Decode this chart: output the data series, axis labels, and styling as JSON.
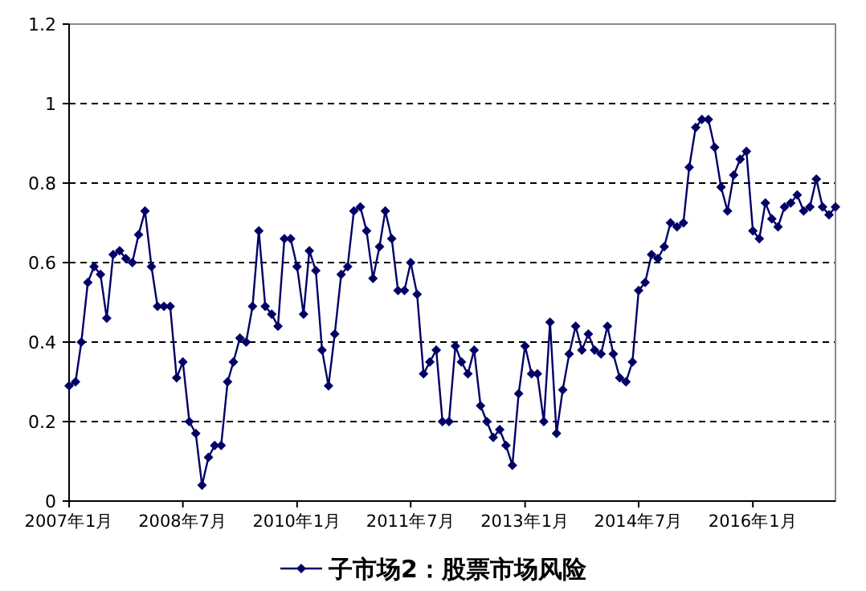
{
  "chart_data": {
    "type": "line",
    "x": [
      "2007-01",
      "2007-02",
      "2007-03",
      "2007-04",
      "2007-05",
      "2007-06",
      "2007-07",
      "2007-08",
      "2007-09",
      "2007-10",
      "2007-11",
      "2007-12",
      "2008-01",
      "2008-02",
      "2008-03",
      "2008-04",
      "2008-05",
      "2008-06",
      "2008-07",
      "2008-08",
      "2008-09",
      "2008-10",
      "2008-11",
      "2008-12",
      "2009-01",
      "2009-02",
      "2009-03",
      "2009-04",
      "2009-05",
      "2009-06",
      "2009-07",
      "2009-08",
      "2009-09",
      "2009-10",
      "2009-11",
      "2009-12",
      "2010-01",
      "2010-02",
      "2010-03",
      "2010-04",
      "2010-05",
      "2010-06",
      "2010-07",
      "2010-08",
      "2010-09",
      "2010-10",
      "2010-11",
      "2010-12",
      "2011-01",
      "2011-02",
      "2011-03",
      "2011-04",
      "2011-05",
      "2011-06",
      "2011-07",
      "2011-08",
      "2011-09",
      "2011-10",
      "2011-11",
      "2011-12",
      "2012-01",
      "2012-02",
      "2012-03",
      "2012-04",
      "2012-05",
      "2012-06",
      "2012-07",
      "2012-08",
      "2012-09",
      "2012-10",
      "2012-11",
      "2012-12",
      "2013-01",
      "2013-02",
      "2013-03",
      "2013-04",
      "2013-05",
      "2013-06",
      "2013-07",
      "2013-08",
      "2013-09",
      "2013-10",
      "2013-11",
      "2013-12",
      "2014-01",
      "2014-02",
      "2014-03",
      "2014-04",
      "2014-05",
      "2014-06",
      "2014-07",
      "2014-08",
      "2014-09",
      "2014-10",
      "2014-11",
      "2014-12",
      "2015-01",
      "2015-02",
      "2015-03",
      "2015-04",
      "2015-05",
      "2015-06",
      "2015-07",
      "2015-08",
      "2015-09",
      "2015-10",
      "2015-11",
      "2015-12",
      "2016-01",
      "2016-02",
      "2016-03",
      "2016-04",
      "2016-05",
      "2016-06",
      "2016-07",
      "2016-08",
      "2016-09",
      "2016-10",
      "2016-11",
      "2016-12",
      "2017-01",
      "2017-02"
    ],
    "series": [
      {
        "name": "子市场2：股票市场风险",
        "color": "#000066",
        "values": [
          0.29,
          0.3,
          0.4,
          0.55,
          0.59,
          0.57,
          0.46,
          0.62,
          0.63,
          0.61,
          0.6,
          0.67,
          0.73,
          0.59,
          0.49,
          0.49,
          0.49,
          0.31,
          0.35,
          0.2,
          0.17,
          0.04,
          0.11,
          0.14,
          0.14,
          0.3,
          0.35,
          0.41,
          0.4,
          0.49,
          0.68,
          0.49,
          0.47,
          0.44,
          0.66,
          0.66,
          0.59,
          0.47,
          0.63,
          0.58,
          0.38,
          0.29,
          0.42,
          0.57,
          0.59,
          0.73,
          0.74,
          0.68,
          0.56,
          0.64,
          0.73,
          0.66,
          0.53,
          0.53,
          0.6,
          0.52,
          0.32,
          0.35,
          0.38,
          0.2,
          0.2,
          0.39,
          0.35,
          0.32,
          0.38,
          0.24,
          0.2,
          0.16,
          0.18,
          0.14,
          0.09,
          0.27,
          0.39,
          0.32,
          0.32,
          0.2,
          0.45,
          0.17,
          0.28,
          0.37,
          0.44,
          0.38,
          0.42,
          0.38,
          0.37,
          0.44,
          0.37,
          0.31,
          0.3,
          0.35,
          0.53,
          0.55,
          0.62,
          0.61,
          0.64,
          0.7,
          0.69,
          0.7,
          0.84,
          0.94,
          0.96,
          0.96,
          0.89,
          0.79,
          0.73,
          0.82,
          0.86,
          0.88,
          0.68,
          0.66,
          0.75,
          0.71,
          0.69,
          0.74,
          0.75,
          0.77,
          0.73,
          0.74,
          0.81,
          0.74,
          0.72,
          0.74
        ]
      }
    ],
    "xlim": [
      "2007-01",
      "2017-02"
    ],
    "xticks": [
      {
        "value": "2007-01",
        "label": "2007年1月"
      },
      {
        "value": "2008-07",
        "label": "2008年7月"
      },
      {
        "value": "2010-01",
        "label": "2010年1月"
      },
      {
        "value": "2011-07",
        "label": "2011年7月"
      },
      {
        "value": "2013-01",
        "label": "2013年1月"
      },
      {
        "value": "2014-07",
        "label": "2014年7月"
      },
      {
        "value": "2016-01",
        "label": "2016年1月"
      }
    ],
    "ylim": [
      0,
      1.2
    ],
    "yticks": [
      0,
      0.2,
      0.4,
      0.6,
      0.8,
      1,
      1.2
    ],
    "grid": "y",
    "legend": "bottom",
    "marker": "diamond",
    "line_style": "solid"
  }
}
